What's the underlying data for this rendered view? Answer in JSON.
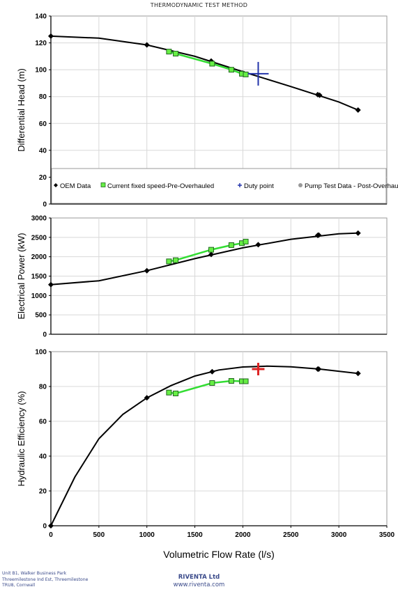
{
  "page": {
    "title": "THERMODYNAMIC TEST METHOD"
  },
  "chart_data": [
    {
      "type": "line",
      "ylabel": "Differential Head (m)",
      "xlim": [
        0,
        3500
      ],
      "ylim": [
        0,
        140
      ],
      "yticks": [
        0,
        20,
        40,
        60,
        80,
        100,
        120,
        140
      ],
      "grid": true,
      "legend": {
        "placement": "lower-left",
        "entries": [
          "OEM Data",
          "Current fixed speed-Pre-Overhauled",
          "Duty point",
          "Pump Test Data - Post-Overhauled"
        ]
      },
      "series": [
        {
          "name": "OEM Data",
          "color": "#000000",
          "marker": "diamond",
          "x": [
            0,
            1000,
            1670,
            2000,
            2780,
            2800,
            3200
          ],
          "y": [
            125,
            118.5,
            106.5,
            97.5,
            81.5,
            81,
            70
          ],
          "curve": [
            [
              0,
              125
            ],
            [
              500,
              123.5
            ],
            [
              1000,
              118.5
            ],
            [
              1500,
              110
            ],
            [
              2000,
              98.5
            ],
            [
              2500,
              87.5
            ],
            [
              3000,
              76
            ],
            [
              3200,
              70
            ]
          ]
        },
        {
          "name": "Current fixed speed-Pre-Overhauled",
          "color": "#33cc33",
          "marker": "square",
          "x": [
            1230,
            1300,
            1680,
            1880,
            1990,
            2030
          ],
          "y": [
            113.5,
            112,
            104.5,
            100,
            97,
            96.5
          ]
        },
        {
          "name": "Duty point",
          "color": "#2233aa",
          "marker": "plus",
          "x": [
            2160
          ],
          "y": [
            97
          ]
        }
      ]
    },
    {
      "type": "line",
      "ylabel": "Electrical Power (kW)",
      "xlim": [
        0,
        3500
      ],
      "ylim": [
        0,
        3000
      ],
      "yticks": [
        0,
        500,
        1000,
        1500,
        2000,
        2500,
        3000
      ],
      "grid": true,
      "series": [
        {
          "name": "OEM Data",
          "color": "#000000",
          "marker": "diamond",
          "x": [
            0,
            1000,
            1670,
            2160,
            2780,
            2790,
            3200
          ],
          "y": [
            1280,
            1640,
            2060,
            2310,
            2550,
            2560,
            2610
          ],
          "curve": [
            [
              0,
              1280
            ],
            [
              500,
              1380
            ],
            [
              1000,
              1640
            ],
            [
              1500,
              1950
            ],
            [
              2000,
              2230
            ],
            [
              2500,
              2450
            ],
            [
              3000,
              2590
            ],
            [
              3200,
              2610
            ]
          ]
        },
        {
          "name": "Current fixed speed-Pre-Overhauled",
          "color": "#33cc33",
          "marker": "square",
          "x": [
            1230,
            1300,
            1670,
            1880,
            1990,
            2030
          ],
          "y": [
            1880,
            1910,
            2180,
            2300,
            2350,
            2390
          ]
        }
      ]
    },
    {
      "type": "line",
      "ylabel": "Hydraulic Efficiency (%)",
      "xlabel": "Volumetric Flow Rate (l/s)",
      "xlim": [
        0,
        3500
      ],
      "ylim": [
        0,
        100
      ],
      "yticks": [
        0,
        20,
        40,
        60,
        80,
        100
      ],
      "xticks": [
        0,
        500,
        1000,
        1500,
        2000,
        2500,
        3000,
        3500
      ],
      "grid": true,
      "series": [
        {
          "name": "OEM Data",
          "color": "#000000",
          "marker": "diamond",
          "x": [
            0,
            1000,
            1680,
            2780,
            2790,
            3200
          ],
          "y": [
            0,
            73.5,
            88.5,
            90,
            90,
            87.5
          ],
          "curve": [
            [
              0,
              0
            ],
            [
              250,
              28
            ],
            [
              500,
              50
            ],
            [
              750,
              64
            ],
            [
              1000,
              73.5
            ],
            [
              1250,
              80.5
            ],
            [
              1500,
              86
            ],
            [
              1750,
              89.5
            ],
            [
              2000,
              91.2
            ],
            [
              2250,
              91.7
            ],
            [
              2500,
              91.3
            ],
            [
              2800,
              90
            ],
            [
              3200,
              87.5
            ]
          ]
        },
        {
          "name": "Current fixed speed-Pre-Overhauled",
          "color": "#33cc33",
          "marker": "square",
          "x": [
            1230,
            1300,
            1680,
            1880,
            1990,
            2030
          ],
          "y": [
            76.5,
            76,
            82,
            83.2,
            83,
            83
          ]
        },
        {
          "name": "Duty point",
          "color": "#dd2222",
          "marker": "plus",
          "x": [
            2160
          ],
          "y": [
            90
          ]
        }
      ]
    }
  ],
  "footer": {
    "left_lines": [
      "Unit B1, Walker Business Park",
      "Threemilestone Ind Est, Threemilestone",
      "TRU8, Cornwall"
    ],
    "company": "RIVENTA Ltd",
    "website": "www.riventa.com"
  }
}
